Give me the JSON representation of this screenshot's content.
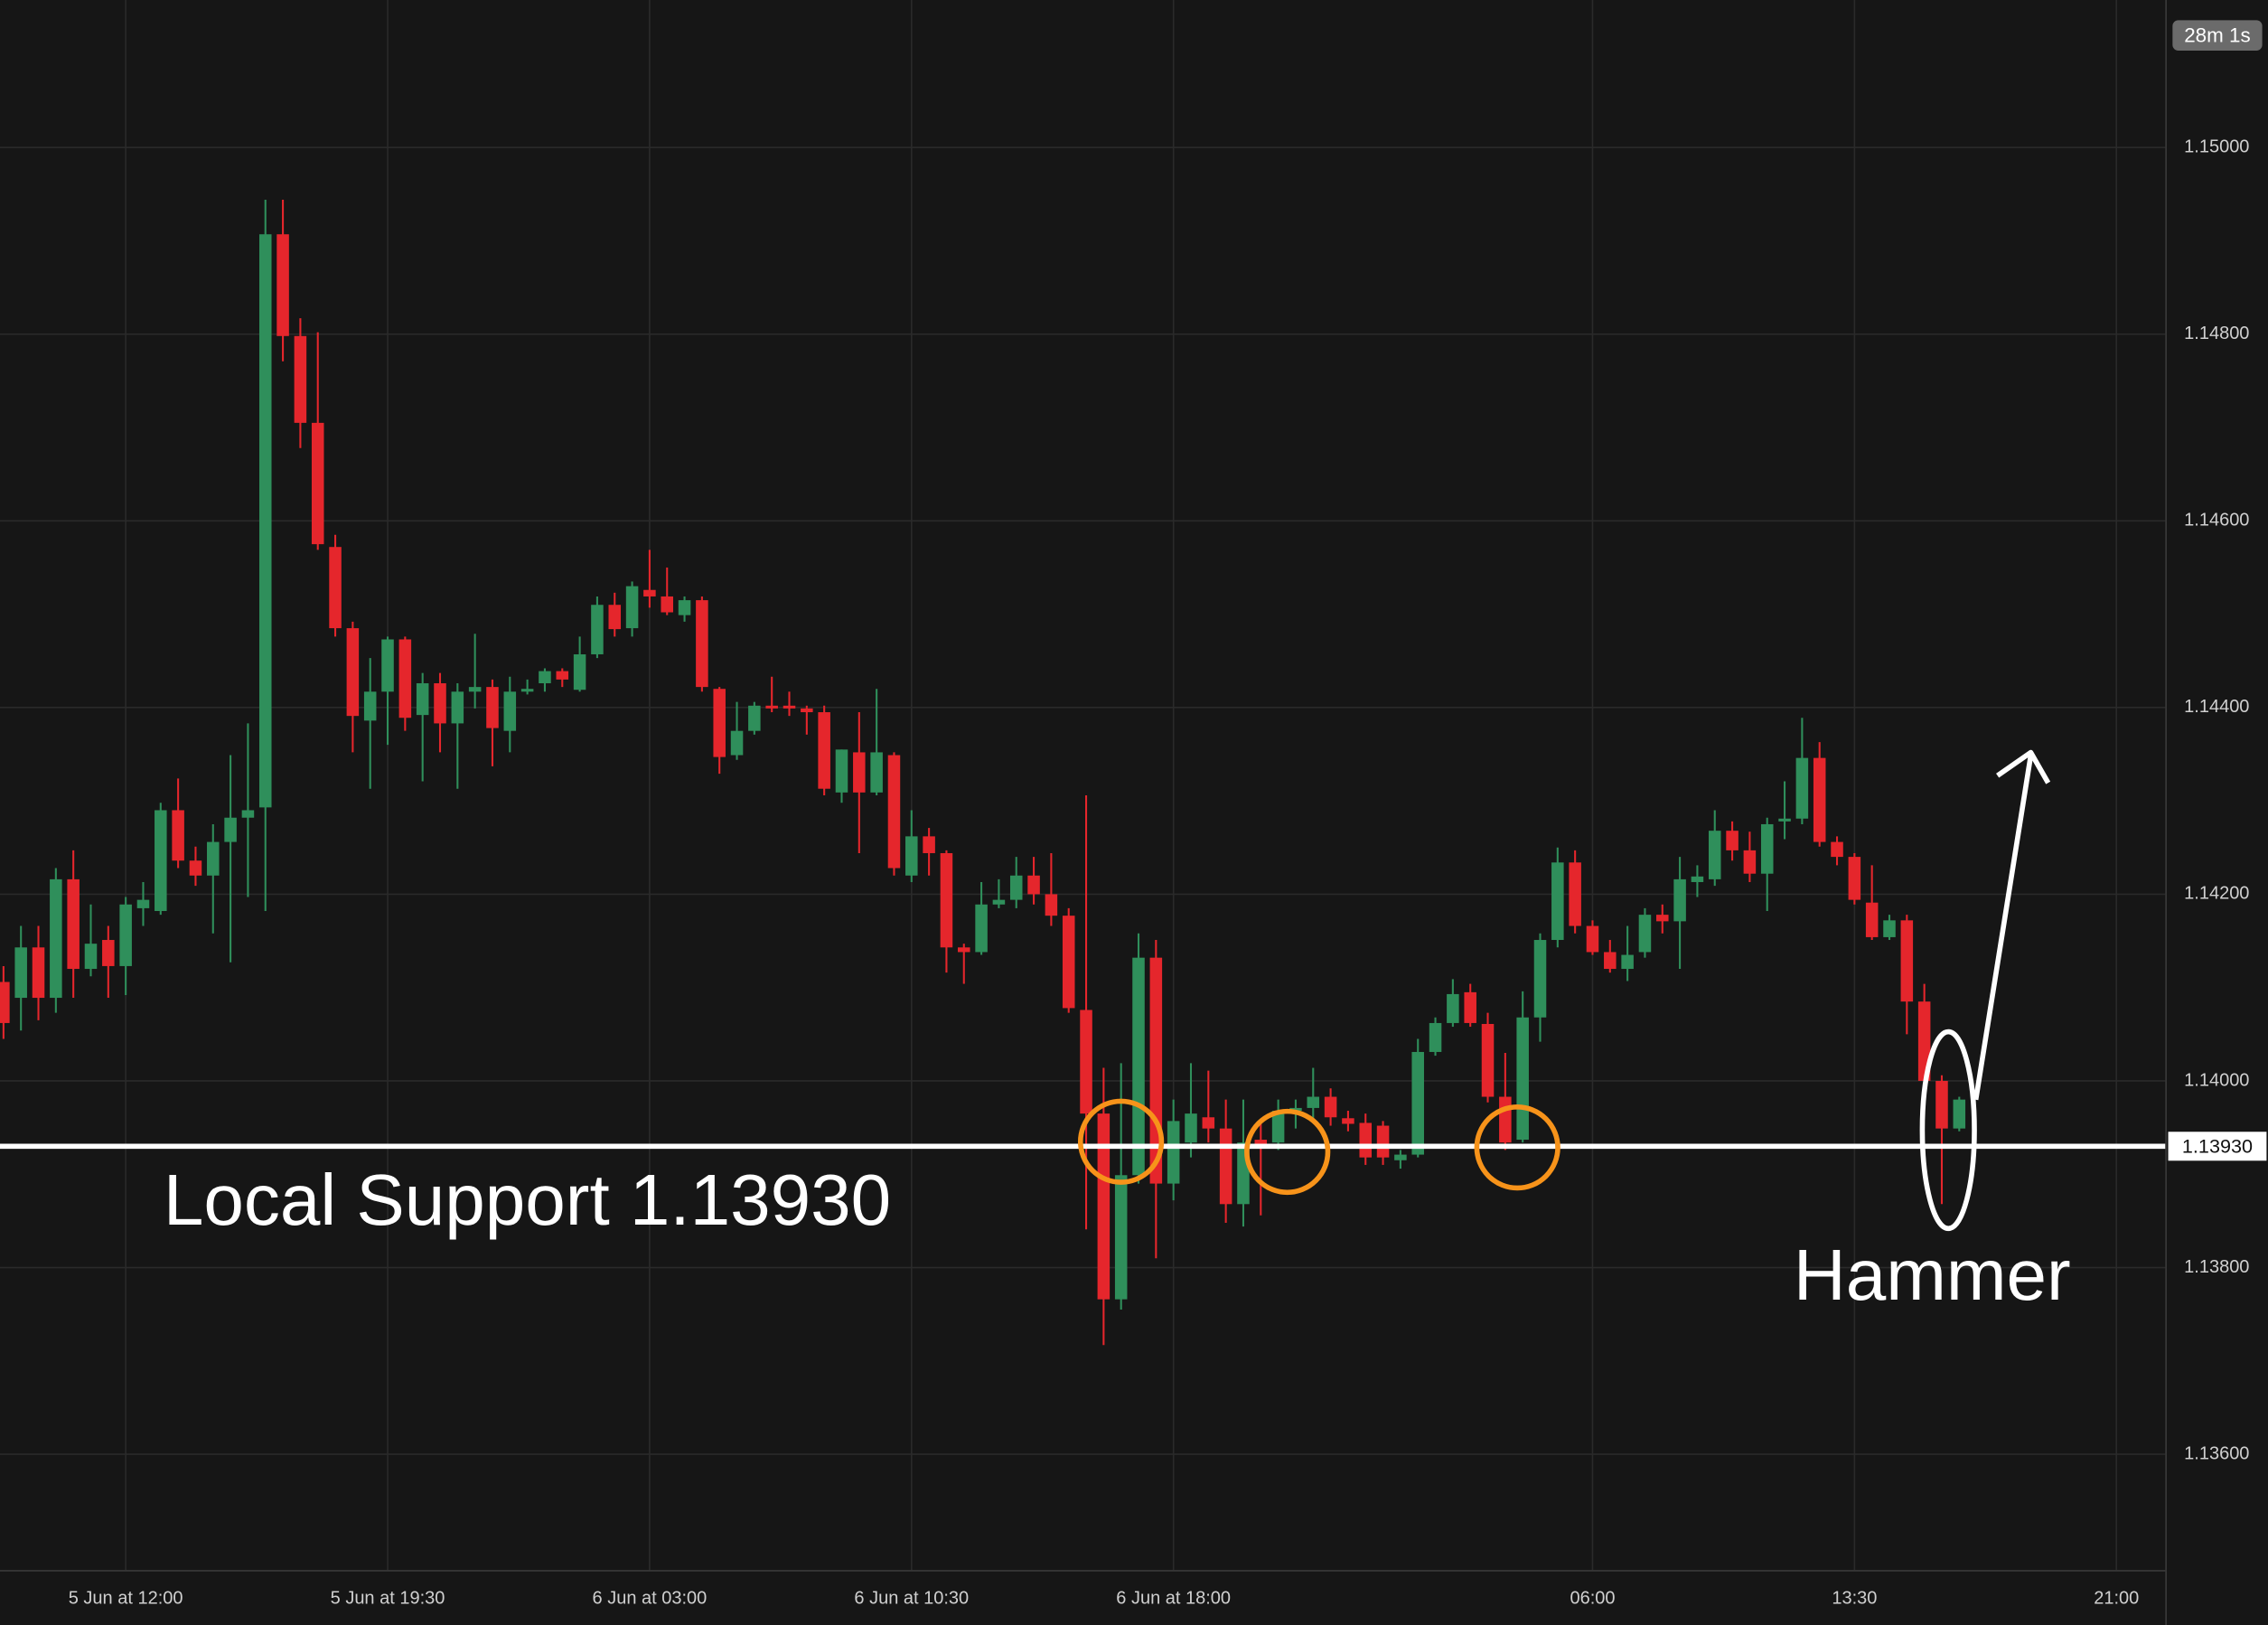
{
  "chart_data": {
    "type": "candlestick",
    "timer": "28m 1s",
    "support_text": "Local Support 1.13930",
    "pattern_label": "Hammer",
    "support": {
      "value": 1.1393,
      "label": "1.13930"
    },
    "up_color": "#2f8f5b",
    "down_color": "#e5262c",
    "support_color": "#ffffff",
    "grid": true,
    "xlim": [
      -7.2,
      116.8
    ],
    "ylim": [
      1.13476,
      1.15158
    ],
    "yticks": [
      {
        "value": 1.136,
        "label": "1.13600"
      },
      {
        "value": 1.138,
        "label": "1.13800"
      },
      {
        "value": 1.14,
        "label": "1.14000"
      },
      {
        "value": 1.142,
        "label": "1.14200"
      },
      {
        "value": 1.144,
        "label": "1.14400"
      },
      {
        "value": 1.146,
        "label": "1.14600"
      },
      {
        "value": 1.148,
        "label": "1.14800"
      },
      {
        "value": 1.15,
        "label": "1.15000"
      }
    ],
    "xticks": [
      {
        "value": 0,
        "label": "5 Jun at 12:00"
      },
      {
        "value": 15,
        "label": "5 Jun at 19:30"
      },
      {
        "value": 30,
        "label": "6 Jun at 03:00"
      },
      {
        "value": 45,
        "label": "6 Jun at 10:30"
      },
      {
        "value": 60,
        "label": "6 Jun at 18:00"
      },
      {
        "value": 84,
        "label": "06:00"
      },
      {
        "value": 99,
        "label": "13:30"
      },
      {
        "value": 114,
        "label": "21:00"
      }
    ],
    "x": [
      -7,
      -6,
      -5,
      -4,
      -3,
      -2,
      -1,
      0,
      1,
      2,
      3,
      4,
      5,
      6,
      7,
      8,
      9,
      10,
      11,
      12,
      13,
      14,
      15,
      16,
      17,
      18,
      19,
      20,
      21,
      22,
      23,
      24,
      25,
      26,
      27,
      28,
      29,
      30,
      31,
      32,
      33,
      34,
      35,
      36,
      37,
      38,
      39,
      40,
      41,
      42,
      43,
      44,
      45,
      46,
      47,
      48,
      49,
      50,
      51,
      52,
      53,
      54,
      55,
      56,
      57,
      58,
      59,
      60,
      61,
      62,
      63,
      64,
      65,
      66,
      67,
      68,
      69,
      70,
      71,
      72,
      73,
      74,
      75,
      76,
      77,
      78,
      79,
      80,
      81,
      82,
      83,
      84,
      85,
      86,
      87,
      88,
      89,
      90,
      91,
      92,
      93,
      94,
      95,
      96,
      97,
      98,
      99,
      100,
      101,
      102,
      103,
      104,
      105
    ],
    "open": [
      1.14106,
      1.14089,
      1.14143,
      1.14089,
      1.14216,
      1.1412,
      1.14151,
      1.14123,
      1.14185,
      1.14182,
      1.1429,
      1.14236,
      1.1422,
      1.14256,
      1.14282,
      1.14293,
      1.14907,
      1.14798,
      1.14705,
      1.14572,
      1.14485,
      1.14386,
      1.14417,
      1.14473,
      1.14392,
      1.14426,
      1.14383,
      1.14417,
      1.14422,
      1.14375,
      1.14417,
      1.14426,
      1.14439,
      1.14419,
      1.14457,
      1.1451,
      1.14485,
      1.14526,
      1.14519,
      1.14499,
      1.14515,
      1.1442,
      1.14349,
      1.14375,
      1.14402,
      1.14402,
      1.14399,
      1.14395,
      1.14309,
      1.14352,
      1.14309,
      1.14349,
      1.1422,
      1.14262,
      1.14244,
      1.14143,
      1.14138,
      1.14189,
      1.14194,
      1.1422,
      1.142,
      1.14177,
      1.14076,
      1.13965,
      1.13766,
      1.13899,
      1.14132,
      1.1389,
      1.13934,
      1.13961,
      1.13949,
      1.13868,
      1.13937,
      1.13934,
      1.13968,
      1.13971,
      1.13983,
      1.1396,
      1.13955,
      1.13952,
      1.13915,
      1.13921,
      1.14031,
      1.14062,
      1.14095,
      1.14061,
      1.13983,
      1.13937,
      1.14068,
      1.14151,
      1.14234,
      1.14166,
      1.14138,
      1.1412,
      1.14138,
      1.14178,
      1.14171,
      1.14213,
      1.14216,
      1.14268,
      1.14247,
      1.14222,
      1.14278,
      1.14281,
      1.14346,
      1.14256,
      1.1424,
      1.14191,
      1.14154,
      1.14172,
      1.14085,
      1.14,
      1.13949
    ],
    "high": [
      1.14123,
      1.14166,
      1.14166,
      1.14228,
      1.14247,
      1.14189,
      1.14166,
      1.14197,
      1.14213,
      1.14298,
      1.14324,
      1.14251,
      1.14275,
      1.14349,
      1.14383,
      1.14944,
      1.14944,
      1.14817,
      1.14802,
      1.14585,
      1.14492,
      1.14453,
      1.14476,
      1.14476,
      1.14437,
      1.14437,
      1.14426,
      1.14479,
      1.1443,
      1.14433,
      1.1443,
      1.14442,
      1.14442,
      1.14476,
      1.14519,
      1.14523,
      1.14535,
      1.14569,
      1.1455,
      1.14519,
      1.14519,
      1.14422,
      1.14406,
      1.14406,
      1.14433,
      1.14417,
      1.14402,
      1.14402,
      1.14355,
      1.14395,
      1.1442,
      1.14352,
      1.1429,
      1.14271,
      1.14247,
      1.14147,
      1.14213,
      1.14216,
      1.1424,
      1.1424,
      1.14244,
      1.14185,
      1.14306,
      1.14014,
      1.14019,
      1.14158,
      1.14151,
      1.1398,
      1.14019,
      1.14011,
      1.1398,
      1.1398,
      1.13957,
      1.1398,
      1.1398,
      1.14014,
      1.13992,
      1.13968,
      1.13965,
      1.13957,
      1.13926,
      1.14045,
      1.14068,
      1.14109,
      1.14104,
      1.14073,
      1.1403,
      1.14096,
      1.14158,
      1.1425,
      1.14247,
      1.14172,
      1.14151,
      1.14166,
      1.14185,
      1.14189,
      1.1424,
      1.14231,
      1.1429,
      1.14278,
      1.14267,
      1.14282,
      1.14321,
      1.14389,
      1.14363,
      1.14262,
      1.14244,
      1.14231,
      1.14178,
      1.14178,
      1.14104,
      1.14006,
      1.13983
    ],
    "low": [
      1.14045,
      1.14054,
      1.14065,
      1.14073,
      1.14089,
      1.14112,
      1.14089,
      1.14092,
      1.14166,
      1.14178,
      1.14228,
      1.14209,
      1.14158,
      1.14127,
      1.14197,
      1.14182,
      1.14771,
      1.14678,
      1.14569,
      1.14476,
      1.14352,
      1.14313,
      1.1436,
      1.14375,
      1.14321,
      1.14352,
      1.14313,
      1.14399,
      1.14337,
      1.14352,
      1.14414,
      1.14417,
      1.14422,
      1.14417,
      1.14453,
      1.14476,
      1.14476,
      1.14507,
      1.14499,
      1.14492,
      1.14417,
      1.14329,
      1.14344,
      1.14371,
      1.14395,
      1.14391,
      1.14371,
      1.14306,
      1.14298,
      1.14244,
      1.14306,
      1.1422,
      1.14213,
      1.1422,
      1.14116,
      1.14104,
      1.14135,
      1.14185,
      1.14185,
      1.14189,
      1.14166,
      1.14073,
      1.13841,
      1.13717,
      1.13755,
      1.1389,
      1.1381,
      1.13872,
      1.13918,
      1.13934,
      1.13848,
      1.13844,
      1.13856,
      1.13926,
      1.13949,
      1.13957,
      1.13952,
      1.13946,
      1.1391,
      1.1391,
      1.13906,
      1.13918,
      1.14027,
      1.14058,
      1.14058,
      1.13977,
      1.13926,
      1.13934,
      1.14042,
      1.14143,
      1.14158,
      1.14135,
      1.14116,
      1.14107,
      1.14132,
      1.14158,
      1.1412,
      1.14197,
      1.14209,
      1.14236,
      1.14213,
      1.14182,
      1.14259,
      1.14275,
      1.14251,
      1.14231,
      1.14189,
      1.14151,
      1.14151,
      1.1405,
      1.13992,
      1.13868,
      1.13946
    ],
    "close": [
      1.14062,
      1.14143,
      1.14089,
      1.14216,
      1.1412,
      1.14147,
      1.14123,
      1.14189,
      1.14194,
      1.1429,
      1.14236,
      1.1422,
      1.14256,
      1.14282,
      1.1429,
      1.14907,
      1.14798,
      1.14705,
      1.14575,
      1.14485,
      1.14391,
      1.14417,
      1.14473,
      1.14389,
      1.14426,
      1.14383,
      1.14417,
      1.14422,
      1.14378,
      1.14417,
      1.1442,
      1.14439,
      1.1443,
      1.14457,
      1.1451,
      1.14484,
      1.1453,
      1.14519,
      1.14502,
      1.14515,
      1.14422,
      1.14347,
      1.14375,
      1.14402,
      1.14399,
      1.14399,
      1.14395,
      1.14313,
      1.14355,
      1.14309,
      1.14352,
      1.14228,
      1.14262,
      1.14244,
      1.14143,
      1.14138,
      1.14189,
      1.14194,
      1.1422,
      1.142,
      1.14177,
      1.14078,
      1.13965,
      1.13766,
      1.13899,
      1.14132,
      1.1389,
      1.13957,
      1.13965,
      1.13949,
      1.13868,
      1.13934,
      1.1393,
      1.13968,
      1.13971,
      1.13983,
      1.13961,
      1.13954,
      1.13918,
      1.13918,
      1.13921,
      1.14031,
      1.14062,
      1.14093,
      1.14062,
      1.13983,
      1.13934,
      1.14068,
      1.14151,
      1.14234,
      1.14166,
      1.14138,
      1.1412,
      1.14135,
      1.14178,
      1.14171,
      1.14216,
      1.14219,
      1.14268,
      1.14247,
      1.14222,
      1.14275,
      1.14281,
      1.14346,
      1.14256,
      1.1424,
      1.14194,
      1.14154,
      1.14172,
      1.14085,
      1.14,
      1.13949,
      1.1398
    ]
  }
}
